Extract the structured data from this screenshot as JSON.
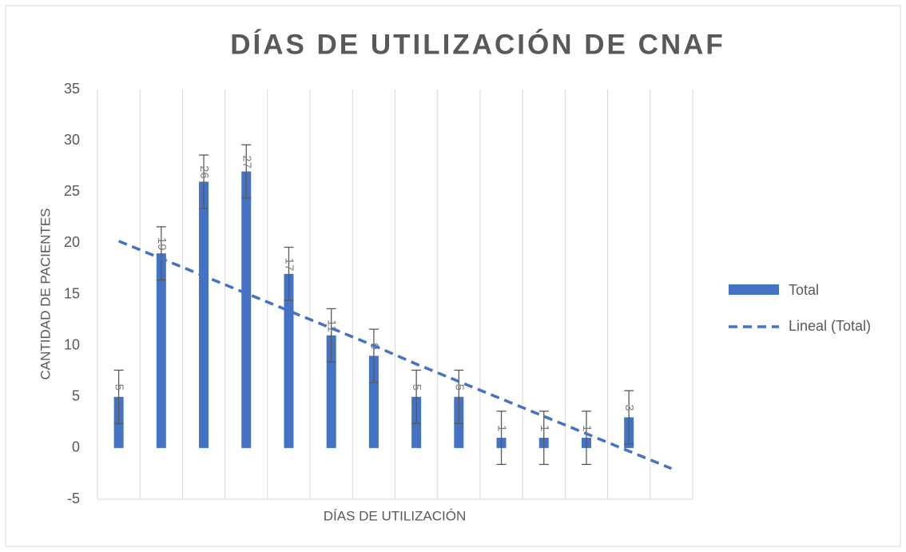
{
  "chart_data": {
    "type": "bar",
    "title": "DÍAS DE UTILIZACIÓN DE CNAF",
    "x_label": "DÍAS DE UTILIZACIÓN",
    "y_label": "CANTIDAD DE PACIENTES",
    "categories": [
      null,
      null,
      null,
      null,
      null,
      null,
      null,
      null,
      null,
      null,
      null,
      null,
      null,
      null
    ],
    "series": [
      {
        "name": "Total",
        "color": "#4472c4",
        "values": [
          5,
          19,
          26,
          27,
          17,
          11,
          9,
          5,
          5,
          1,
          1,
          1,
          3,
          null
        ],
        "errors": [
          2.6,
          2.6,
          2.6,
          2.6,
          2.6,
          2.6,
          2.6,
          2.6,
          2.6,
          2.6,
          2.6,
          2.6,
          2.6,
          null
        ]
      }
    ],
    "trendline": {
      "name": "Lineal (Total)",
      "color": "#4472c4",
      "values": [
        20.2,
        18.5,
        16.8,
        15.1,
        13.4,
        11.7,
        10.0,
        8.2,
        6.5,
        4.8,
        3.1,
        1.4,
        -0.3,
        -2.0
      ]
    },
    "ylim": [
      -5,
      35
    ],
    "yticks": [
      -5,
      0,
      5,
      10,
      15,
      20,
      25,
      30,
      35
    ],
    "grid": true,
    "legend": "right"
  }
}
